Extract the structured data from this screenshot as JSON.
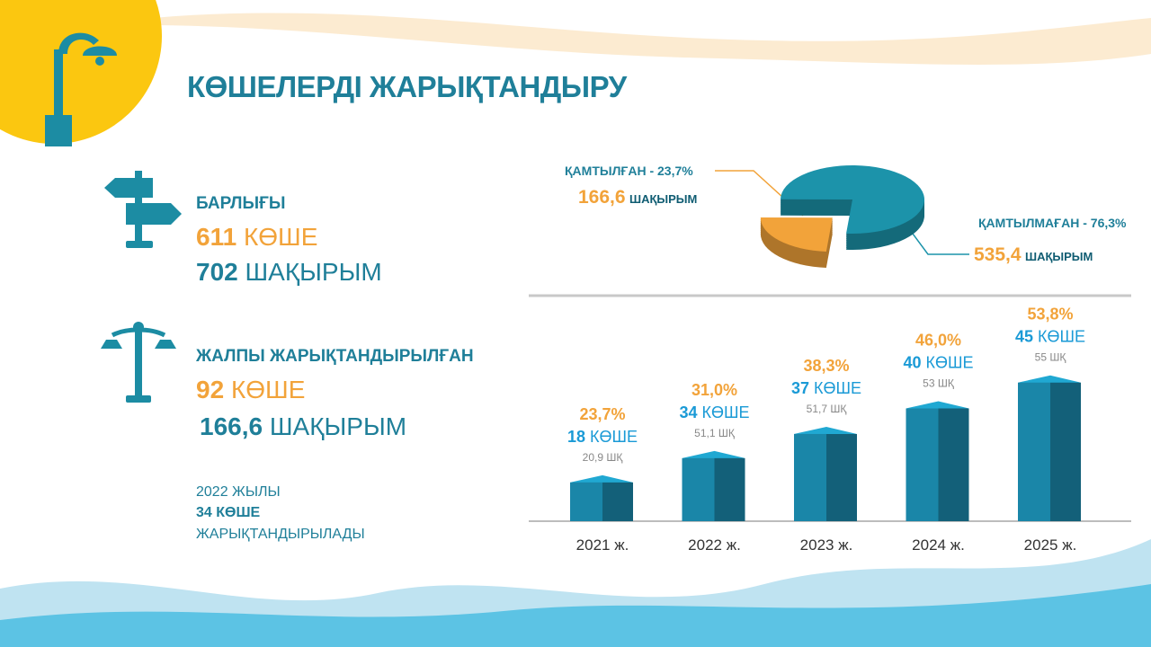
{
  "header": {
    "title": "КӨШЕЛЕРДІ ЖАРЫҚТАНДЫРУ"
  },
  "stats": [
    {
      "label": "БАРЛЫҒЫ",
      "count": "611",
      "count_unit": "КӨШЕ",
      "length": "702",
      "length_unit": "ШАҚЫРЫМ"
    },
    {
      "label": "ЖАЛПЫ ЖАРЫҚТАНДЫРЫЛҒАН",
      "count": "92",
      "count_unit": "КӨШЕ",
      "length": "166,6",
      "length_unit": "ШАҚЫРЫМ"
    }
  ],
  "note": {
    "year": "2022 ЖЫЛЫ",
    "streets": "34 КӨШЕ",
    "action": "ЖАРЫҚТАНДЫРЫЛАДЫ"
  },
  "chart_data": [
    {
      "type": "pie",
      "categories": [
        "ҚАМТЫЛҒАН",
        "ҚАМТЫЛМАҒАН"
      ],
      "separator": "-",
      "values": [
        23.7,
        76.3
      ],
      "value_labels": [
        "23,7%",
        "76,3%"
      ],
      "colors": [
        "#f2a33a",
        "#1c93aa"
      ],
      "lengths": [
        166.6,
        535.4
      ],
      "length_labels": [
        "166,6",
        "535,4"
      ],
      "length_unit": "ШАҚЫРЫМ"
    },
    {
      "type": "bar",
      "categories": [
        "2021 ж.",
        "2022 ж.",
        "2023 ж.",
        "2024 ж.",
        "2025 ж."
      ],
      "values": [
        23.7,
        31.0,
        38.3,
        46.0,
        53.8
      ],
      "value_labels": [
        "23,7%",
        "31,0%",
        "38,3%",
        "46,0%",
        "53,8%"
      ],
      "streets": [
        18,
        34,
        37,
        40,
        45
      ],
      "street_unit": "КӨШЕ",
      "km": [
        20.9,
        51.1,
        51.7,
        53,
        55
      ],
      "km_labels": [
        "20,9",
        "51,1",
        "51,7",
        "53",
        "55"
      ],
      "km_unit": "ШҚ",
      "color": "#1a86a8",
      "ylim": [
        12,
        54
      ]
    }
  ]
}
